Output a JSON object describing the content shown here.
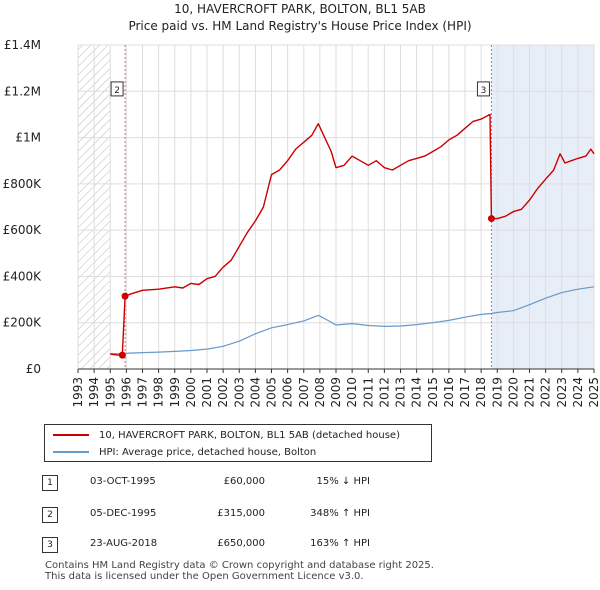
{
  "title_line1": "10, HAVERCROFT PARK, BOLTON, BL1 5AB",
  "title_line2": "Price paid vs. HM Land Registry's House Price Index (HPI)",
  "chart_data": {
    "type": "line",
    "title": "10, HAVERCROFT PARK, BOLTON, BL1 5AB — Price paid vs. HM Land Registry's House Price Index (HPI)",
    "xlabel": "",
    "ylabel": "",
    "xlim": [
      1993,
      2025
    ],
    "ylim": [
      0,
      1400000
    ],
    "x_ticks": [
      "1993",
      "1994",
      "1995",
      "1996",
      "1997",
      "1998",
      "1999",
      "2000",
      "2001",
      "2002",
      "2003",
      "2004",
      "2005",
      "2006",
      "2007",
      "2008",
      "2009",
      "2010",
      "2011",
      "2012",
      "2013",
      "2014",
      "2015",
      "2016",
      "2017",
      "2018",
      "2019",
      "2020",
      "2021",
      "2022",
      "2023",
      "2024",
      "2025"
    ],
    "y_ticks": [
      {
        "value": 0,
        "label": "£0"
      },
      {
        "value": 200000,
        "label": "£200K"
      },
      {
        "value": 400000,
        "label": "£400K"
      },
      {
        "value": 600000,
        "label": "£600K"
      },
      {
        "value": 800000,
        "label": "£800K"
      },
      {
        "value": 1000000,
        "label": "£1M"
      },
      {
        "value": 1200000,
        "label": "£1.2M"
      },
      {
        "value": 1400000,
        "label": "£1.4M"
      }
    ],
    "hatch_until": 1995.0,
    "shade_from": 2018.65,
    "series": [
      {
        "name": "10, HAVERCROFT PARK, BOLTON, BL1 5AB (detached house)",
        "color": "#cc0000",
        "points": [
          [
            1995.0,
            64000
          ],
          [
            1995.5,
            60000
          ],
          [
            1995.75,
            60000
          ],
          [
            1995.92,
            315000
          ],
          [
            1996.3,
            325000
          ],
          [
            1997,
            340000
          ],
          [
            1998,
            345000
          ],
          [
            1999,
            355000
          ],
          [
            1999.5,
            350000
          ],
          [
            2000,
            370000
          ],
          [
            2000.5,
            365000
          ],
          [
            2001,
            390000
          ],
          [
            2001.5,
            400000
          ],
          [
            2002,
            440000
          ],
          [
            2002.5,
            470000
          ],
          [
            2003,
            530000
          ],
          [
            2003.5,
            590000
          ],
          [
            2004,
            640000
          ],
          [
            2004.5,
            700000
          ],
          [
            2005,
            840000
          ],
          [
            2005.5,
            860000
          ],
          [
            2006,
            900000
          ],
          [
            2006.5,
            950000
          ],
          [
            2007,
            980000
          ],
          [
            2007.5,
            1010000
          ],
          [
            2007.9,
            1060000
          ],
          [
            2008.3,
            1000000
          ],
          [
            2008.7,
            940000
          ],
          [
            2009,
            870000
          ],
          [
            2009.5,
            880000
          ],
          [
            2010,
            920000
          ],
          [
            2010.5,
            900000
          ],
          [
            2011,
            880000
          ],
          [
            2011.5,
            900000
          ],
          [
            2012,
            870000
          ],
          [
            2012.5,
            860000
          ],
          [
            2013,
            880000
          ],
          [
            2013.5,
            900000
          ],
          [
            2014,
            910000
          ],
          [
            2014.5,
            920000
          ],
          [
            2015,
            940000
          ],
          [
            2015.5,
            960000
          ],
          [
            2016,
            990000
          ],
          [
            2016.5,
            1010000
          ],
          [
            2017,
            1040000
          ],
          [
            2017.5,
            1070000
          ],
          [
            2018,
            1080000
          ],
          [
            2018.55,
            1100000
          ],
          [
            2018.64,
            650000
          ],
          [
            2019,
            650000
          ],
          [
            2019.5,
            660000
          ],
          [
            2020,
            680000
          ],
          [
            2020.5,
            690000
          ],
          [
            2021,
            730000
          ],
          [
            2021.5,
            780000
          ],
          [
            2022,
            820000
          ],
          [
            2022.5,
            860000
          ],
          [
            2022.9,
            930000
          ],
          [
            2023.2,
            890000
          ],
          [
            2023.6,
            900000
          ],
          [
            2024,
            910000
          ],
          [
            2024.5,
            920000
          ],
          [
            2024.8,
            950000
          ],
          [
            2025,
            930000
          ]
        ]
      },
      {
        "name": "HPI: Average price, detached house, Bolton",
        "color": "#6699cc",
        "points": [
          [
            1995.0,
            67000
          ],
          [
            1995.5,
            66000
          ],
          [
            1996,
            68000
          ],
          [
            1997,
            71000
          ],
          [
            1998,
            73000
          ],
          [
            1999,
            76000
          ],
          [
            2000,
            80000
          ],
          [
            2001,
            86000
          ],
          [
            2002,
            98000
          ],
          [
            2003,
            120000
          ],
          [
            2004,
            152000
          ],
          [
            2005,
            178000
          ],
          [
            2006,
            192000
          ],
          [
            2007,
            208000
          ],
          [
            2007.9,
            232000
          ],
          [
            2008.5,
            210000
          ],
          [
            2009,
            190000
          ],
          [
            2010,
            196000
          ],
          [
            2011,
            188000
          ],
          [
            2012,
            184000
          ],
          [
            2013,
            186000
          ],
          [
            2014,
            192000
          ],
          [
            2015,
            200000
          ],
          [
            2016,
            210000
          ],
          [
            2017,
            224000
          ],
          [
            2018,
            236000
          ],
          [
            2018.64,
            240000
          ],
          [
            2019,
            244000
          ],
          [
            2020,
            252000
          ],
          [
            2021,
            278000
          ],
          [
            2022,
            306000
          ],
          [
            2023,
            330000
          ],
          [
            2024,
            345000
          ],
          [
            2025,
            355000
          ]
        ]
      }
    ],
    "sales": [
      {
        "id": "1",
        "year": 1995.75,
        "price": 60000,
        "date": "03-OCT-1995",
        "hpi_change": "15% ↓ HPI"
      },
      {
        "id": "2",
        "year": 1995.92,
        "price": 315000,
        "date": "05-DEC-1995",
        "hpi_change": "348% ↑ HPI"
      },
      {
        "id": "3",
        "year": 2018.64,
        "price": 650000,
        "date": "23-AUG-2018",
        "hpi_change": "163% ↑ HPI"
      }
    ],
    "chart_callouts": [
      {
        "id": "2",
        "year": 1995.92,
        "anchor_value": 1180000
      },
      {
        "id": "3",
        "year": 2018.64,
        "anchor_value": 1180000
      }
    ]
  },
  "legend": {
    "property_label": "10, HAVERCROFT PARK, BOLTON, BL1 5AB (detached house)",
    "hpi_label": "HPI: Average price, detached house, Bolton"
  },
  "table": [
    {
      "id": "1",
      "date": "03-OCT-1995",
      "price": "£60,000",
      "hpi": "15% ↓ HPI"
    },
    {
      "id": "2",
      "date": "05-DEC-1995",
      "price": "£315,000",
      "hpi": "348% ↑ HPI"
    },
    {
      "id": "3",
      "date": "23-AUG-2018",
      "price": "£650,000",
      "hpi": "163% ↑ HPI"
    }
  ],
  "footer": {
    "line1": "Contains HM Land Registry data © Crown copyright and database right 2025.",
    "line2": "This data is licensed under the Open Government Licence v3.0."
  }
}
